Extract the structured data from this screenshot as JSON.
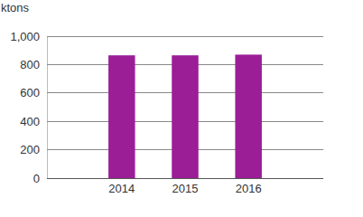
{
  "chart_data": {
    "type": "bar",
    "y_label": "ktons",
    "categories": [
      "2014",
      "2015",
      "2016"
    ],
    "values": [
      865,
      865,
      870
    ],
    "color": "#9b1e96",
    "ylim": [
      0,
      1000
    ],
    "yticks": [
      0,
      200,
      400,
      600,
      800,
      {
        "value": 1000,
        "label": "1,000"
      }
    ],
    "grid": true
  }
}
